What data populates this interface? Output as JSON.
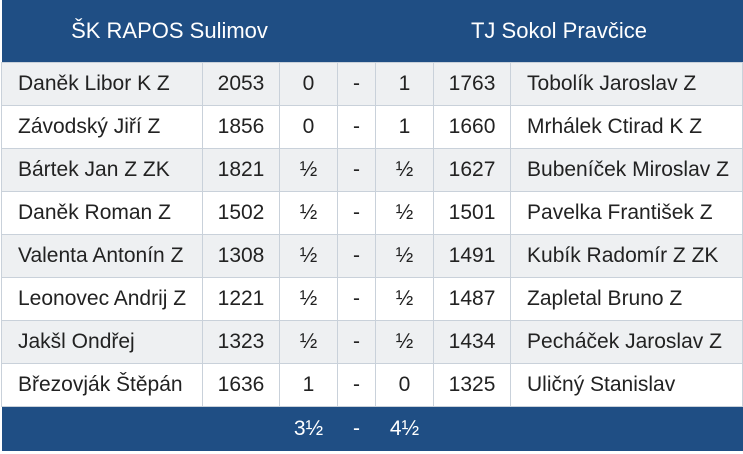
{
  "header": {
    "home_team": "ŠK RAPOS Sulimov",
    "away_team": "TJ Sokol Pravčice"
  },
  "rows": [
    {
      "home_player": "Daněk Libor K Z",
      "home_elo": "2053",
      "home_score": "0",
      "sep": "-",
      "away_score": "1",
      "away_elo": "1763",
      "away_player": "Tobolík Jaroslav Z"
    },
    {
      "home_player": "Závodský Jiří Z",
      "home_elo": "1856",
      "home_score": "0",
      "sep": "-",
      "away_score": "1",
      "away_elo": "1660",
      "away_player": "Mrhálek Ctirad K Z"
    },
    {
      "home_player": "Bártek Jan Z ZK",
      "home_elo": "1821",
      "home_score": "½",
      "sep": "-",
      "away_score": "½",
      "away_elo": "1627",
      "away_player": "Bubeníček Miroslav Z"
    },
    {
      "home_player": "Daněk Roman Z",
      "home_elo": "1502",
      "home_score": "½",
      "sep": "-",
      "away_score": "½",
      "away_elo": "1501",
      "away_player": "Pavelka František Z"
    },
    {
      "home_player": "Valenta Antonín Z",
      "home_elo": "1308",
      "home_score": "½",
      "sep": "-",
      "away_score": "½",
      "away_elo": "1491",
      "away_player": "Kubík Radomír Z ZK"
    },
    {
      "home_player": "Leonovec Andrij Z",
      "home_elo": "1221",
      "home_score": "½",
      "sep": "-",
      "away_score": "½",
      "away_elo": "1487",
      "away_player": "Zapletal Bruno Z"
    },
    {
      "home_player": "Jakšl Ondřej",
      "home_elo": "1323",
      "home_score": "½",
      "sep": "-",
      "away_score": "½",
      "away_elo": "1434",
      "away_player": "Pecháček Jaroslav Z"
    },
    {
      "home_player": "Březovják Štěpán",
      "home_elo": "1636",
      "home_score": "1",
      "sep": "-",
      "away_score": "0",
      "away_elo": "1325",
      "away_player": "Uličný Stanislav"
    }
  ],
  "footer": {
    "home_total": "3½",
    "sep": "-",
    "away_total": "4½"
  },
  "colors": {
    "header_bg": "#1f4e84",
    "row_alt_bg": "#eef0f2",
    "border": "#c9d1da"
  }
}
